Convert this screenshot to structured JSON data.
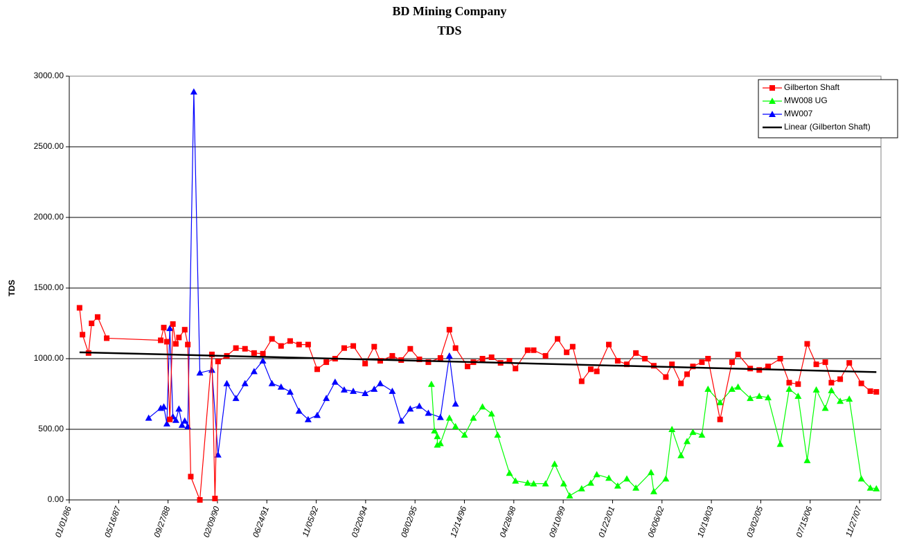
{
  "chart_data": {
    "type": "line",
    "title": "BD Mining Company",
    "subtitle": "TDS",
    "y_label": "TDS",
    "xlim": [
      "1986-01-01",
      "2008-07-01"
    ],
    "xticks": [
      {
        "value": "1986-01-01",
        "label": "01/01/86"
      },
      {
        "value": "1987-05-16",
        "label": "05/16/87"
      },
      {
        "value": "1988-09-27",
        "label": "09/27/88"
      },
      {
        "value": "1990-02-09",
        "label": "02/09/90"
      },
      {
        "value": "1991-06-24",
        "label": "06/24/91"
      },
      {
        "value": "1992-11-05",
        "label": "11/05/92"
      },
      {
        "value": "1994-03-20",
        "label": "03/20/94"
      },
      {
        "value": "1995-08-02",
        "label": "08/02/95"
      },
      {
        "value": "1996-12-14",
        "label": "12/14/96"
      },
      {
        "value": "1998-04-28",
        "label": "04/28/98"
      },
      {
        "value": "1999-09-10",
        "label": "09/10/99"
      },
      {
        "value": "2001-01-22",
        "label": "01/22/01"
      },
      {
        "value": "2002-06-06",
        "label": "06/06/02"
      },
      {
        "value": "2003-10-19",
        "label": "10/19/03"
      },
      {
        "value": "2005-03-02",
        "label": "03/02/05"
      },
      {
        "value": "2006-07-15",
        "label": "07/15/06"
      },
      {
        "value": "2007-11-27",
        "label": "11/27/07"
      }
    ],
    "ylim": [
      0,
      3000
    ],
    "yticks": [
      {
        "value": 0,
        "label": "0.00"
      },
      {
        "value": 500,
        "label": "500.00"
      },
      {
        "value": 1000,
        "label": "1000.00"
      },
      {
        "value": 1500,
        "label": "1500.00"
      },
      {
        "value": 2000,
        "label": "2000.00"
      },
      {
        "value": 2500,
        "label": "2500.00"
      },
      {
        "value": 3000,
        "label": "3000.00"
      }
    ],
    "grid": true,
    "legend": "top-right",
    "series": [
      {
        "name": "Gilberton Shaft",
        "color": "#ff0000",
        "marker": "square",
        "x": [
          "1986-04",
          "1986-05",
          "1986-07",
          "1986-08",
          "1986-10",
          "1987-01",
          "1988-07",
          "1988-08",
          "1988-09",
          "1988-10",
          "1988-11",
          "1988-12",
          "1989-01",
          "1989-03",
          "1989-04",
          "1989-05",
          "1989-08",
          "1989-12",
          "1990-01",
          "1990-02",
          "1990-05",
          "1990-08",
          "1990-11",
          "1991-02",
          "1991-05",
          "1991-08",
          "1991-11",
          "1992-02",
          "1992-05",
          "1992-08",
          "1992-11",
          "1993-02",
          "1993-05",
          "1993-08",
          "1993-11",
          "1994-03",
          "1994-06",
          "1994-08",
          "1994-12",
          "1995-03",
          "1995-06",
          "1995-09",
          "1995-12",
          "1996-04",
          "1996-07",
          "1996-09",
          "1997-01",
          "1997-03",
          "1997-06",
          "1997-09",
          "1997-12",
          "1998-03",
          "1998-05",
          "1998-09",
          "1998-11",
          "1999-03",
          "1999-07",
          "1999-10",
          "1999-12",
          "2000-03",
          "2000-06",
          "2000-08",
          "2000-12",
          "2001-03",
          "2001-06",
          "2001-09",
          "2001-12",
          "2002-03",
          "2002-07",
          "2002-09",
          "2002-12",
          "2003-02",
          "2003-04",
          "2003-07",
          "2003-09",
          "2004-01",
          "2004-05",
          "2004-07",
          "2004-11",
          "2005-02",
          "2005-05",
          "2005-09",
          "2005-12",
          "2006-03",
          "2006-06",
          "2006-09",
          "2006-12",
          "2007-02",
          "2007-05",
          "2007-08",
          "2007-12",
          "2008-03",
          "2008-05"
        ],
        "values": [
          1360,
          1170,
          1040,
          1250,
          1295,
          1145,
          1130,
          1220,
          1120,
          570,
          1245,
          1105,
          1150,
          1205,
          1100,
          165,
          0,
          1030,
          10,
          980,
          1020,
          1075,
          1070,
          1040,
          1035,
          1140,
          1090,
          1125,
          1100,
          1100,
          925,
          975,
          1000,
          1075,
          1090,
          965,
          1085,
          985,
          1020,
          990,
          1070,
          995,
          975,
          1005,
          1205,
          1075,
          945,
          975,
          1000,
          1010,
          970,
          985,
          930,
          1060,
          1060,
          1020,
          1140,
          1045,
          1085,
          840,
          925,
          910,
          1100,
          985,
          960,
          1040,
          1000,
          950,
          870,
          960,
          825,
          890,
          945,
          975,
          1000,
          570,
          975,
          1030,
          930,
          920,
          945,
          1000,
          830,
          820,
          1105,
          960,
          975,
          830,
          855,
          970,
          825,
          770,
          765
        ]
      },
      {
        "name": "MW008 UG",
        "color": "#00ff00",
        "marker": "triangle",
        "x": [
          "1996-01",
          "1996-02",
          "1996-03",
          "1996-03",
          "1996-04",
          "1996-07",
          "1996-09",
          "1996-12",
          "1997-03",
          "1997-06",
          "1997-09",
          "1997-11",
          "1998-03",
          "1998-05",
          "1998-09",
          "1998-11",
          "1999-03",
          "1999-06",
          "1999-09",
          "1999-11",
          "2000-03",
          "2000-06",
          "2000-08",
          "2000-12",
          "2001-03",
          "2001-06",
          "2001-09",
          "2002-02",
          "2002-03",
          "2002-07",
          "2002-09",
          "2002-12",
          "2003-02",
          "2003-04",
          "2003-07",
          "2003-09",
          "2004-01",
          "2004-05",
          "2004-07",
          "2004-11",
          "2005-02",
          "2005-05",
          "2005-09",
          "2005-12",
          "2006-03",
          "2006-06",
          "2006-09",
          "2006-12",
          "2007-02",
          "2007-05",
          "2007-08",
          "2007-12",
          "2008-03",
          "2008-05"
        ],
        "values": [
          820,
          490,
          450,
          390,
          400,
          580,
          520,
          460,
          580,
          660,
          610,
          460,
          190,
          135,
          120,
          115,
          115,
          255,
          115,
          30,
          80,
          120,
          180,
          155,
          100,
          150,
          85,
          195,
          60,
          150,
          500,
          315,
          415,
          480,
          460,
          785,
          690,
          785,
          800,
          720,
          735,
          725,
          395,
          785,
          735,
          280,
          780,
          650,
          775,
          700,
          715,
          150,
          85,
          80
        ]
      },
      {
        "name": "MW007",
        "color": "#0000ff",
        "marker": "triangle",
        "x": [
          "1988-03",
          "1988-07",
          "1988-08",
          "1988-09",
          "1988-10",
          "1988-11",
          "1988-12",
          "1989-01",
          "1989-02",
          "1989-03",
          "1989-04",
          "1989-06",
          "1989-08",
          "1989-12",
          "1990-02",
          "1990-05",
          "1990-08",
          "1990-11",
          "1991-02",
          "1991-05",
          "1991-08",
          "1991-11",
          "1992-02",
          "1992-05",
          "1992-08",
          "1992-11",
          "1993-02",
          "1993-05",
          "1993-08",
          "1993-11",
          "1994-03",
          "1994-06",
          "1994-08",
          "1994-12",
          "1995-03",
          "1995-06",
          "1995-09",
          "1995-12",
          "1996-04",
          "1996-07",
          "1996-09"
        ],
        "values": [
          580,
          650,
          660,
          540,
          1215,
          590,
          565,
          645,
          530,
          560,
          520,
          2890,
          900,
          920,
          320,
          825,
          720,
          825,
          910,
          985,
          825,
          800,
          765,
          630,
          570,
          600,
          720,
          835,
          780,
          770,
          755,
          785,
          825,
          770,
          560,
          645,
          665,
          615,
          585,
          1020,
          680
        ]
      },
      {
        "name": "Linear (Gilberton Shaft)",
        "color": "#000000",
        "marker": "none",
        "trend": true,
        "x": [
          "1986-04",
          "2008-05"
        ],
        "values": [
          1045,
          905
        ]
      }
    ]
  }
}
